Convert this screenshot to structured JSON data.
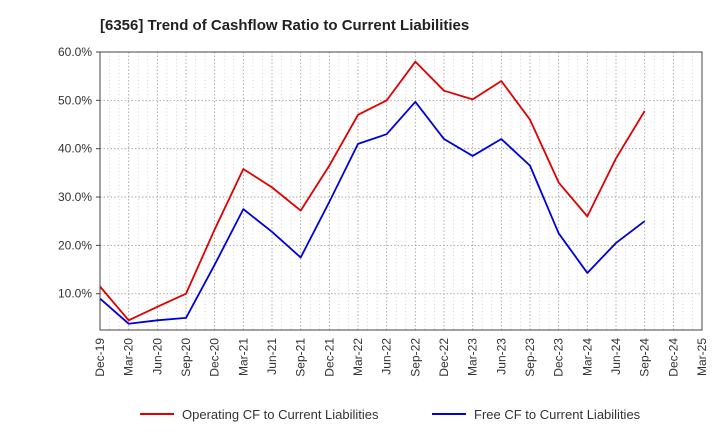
{
  "chart_data": {
    "type": "line",
    "title": "[6356]  Trend of Cashflow Ratio to Current Liabilities",
    "xlabel": "",
    "ylabel": "",
    "x": [
      "Dec-19",
      "Mar-20",
      "Jun-20",
      "Sep-20",
      "Dec-20",
      "Mar-21",
      "Jun-21",
      "Sep-21",
      "Dec-21",
      "Mar-22",
      "Jun-22",
      "Sep-22",
      "Dec-22",
      "Mar-23",
      "Jun-23",
      "Sep-23",
      "Dec-23",
      "Mar-24",
      "Jun-24",
      "Sep-24",
      "Dec-24",
      "Mar-25"
    ],
    "ylim": [
      2.5,
      60
    ],
    "yticks": [
      10,
      20,
      30,
      40,
      50,
      60
    ],
    "ytick_labels": [
      "10.0%",
      "20.0%",
      "30.0%",
      "40.0%",
      "50.0%",
      "60.0%"
    ],
    "grid": true,
    "legend_position": "bottom",
    "series": [
      {
        "name": "Operating CF to Current Liabilities",
        "color": "#e00000",
        "values": [
          11.5,
          4.5,
          7.3,
          10.0,
          23.3,
          35.8,
          32.0,
          27.2,
          36.5,
          47.0,
          50.0,
          58.0,
          52.0,
          50.2,
          54.0,
          46.0,
          33.0,
          26.0,
          38.0,
          47.8,
          null,
          null
        ]
      },
      {
        "name": "Free CF to Current Liabilities",
        "color": "#0000dd",
        "values": [
          9.0,
          3.8,
          4.5,
          5.0,
          16.0,
          27.5,
          22.8,
          17.5,
          29.0,
          41.0,
          43.0,
          49.7,
          42.0,
          38.5,
          42.0,
          36.5,
          22.5,
          14.3,
          20.5,
          25.0,
          null,
          null
        ]
      }
    ]
  }
}
